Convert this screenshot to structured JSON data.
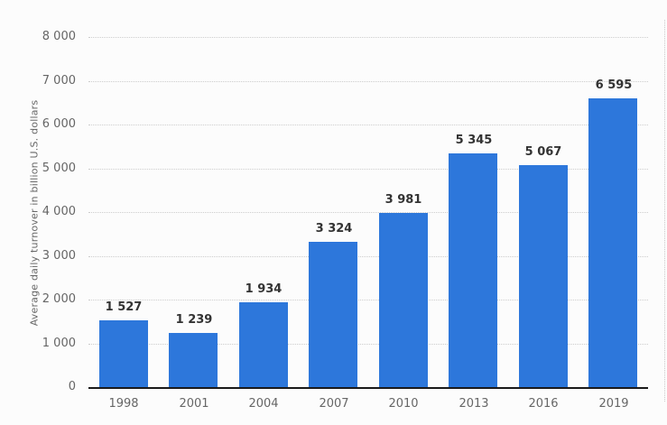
{
  "chart_data": {
    "type": "bar",
    "title": "",
    "xlabel": "",
    "ylabel": "Average daily turnover in billion U.S. dollars",
    "categories": [
      "1998",
      "2001",
      "2004",
      "2007",
      "2010",
      "2013",
      "2016",
      "2019"
    ],
    "values": [
      1527,
      1239,
      1934,
      3324,
      3981,
      5345,
      5067,
      6595
    ],
    "value_labels": [
      "1 527",
      "1 239",
      "1 934",
      "3 324",
      "3 981",
      "5 345",
      "5 067",
      "6 595"
    ],
    "ylim": [
      0,
      8000
    ],
    "ytick_step": 1000,
    "yticks": [
      {
        "value": 0,
        "label": "0"
      },
      {
        "value": 1000,
        "label": "1 000"
      },
      {
        "value": 2000,
        "label": "2 000"
      },
      {
        "value": 3000,
        "label": "3 000"
      },
      {
        "value": 4000,
        "label": "4 000"
      },
      {
        "value": 5000,
        "label": "5 000"
      },
      {
        "value": 6000,
        "label": "6 000"
      },
      {
        "value": 7000,
        "label": "7 000"
      },
      {
        "value": 8000,
        "label": "8 000"
      }
    ],
    "grid": true,
    "legend_position": "none"
  },
  "colors": {
    "bar": "#2d77db",
    "gridline": "#cdcdcd",
    "axis_line": "#1a1a1a",
    "value_label": "#333333",
    "tick_label": "#666666",
    "background": "#fcfcfc"
  }
}
